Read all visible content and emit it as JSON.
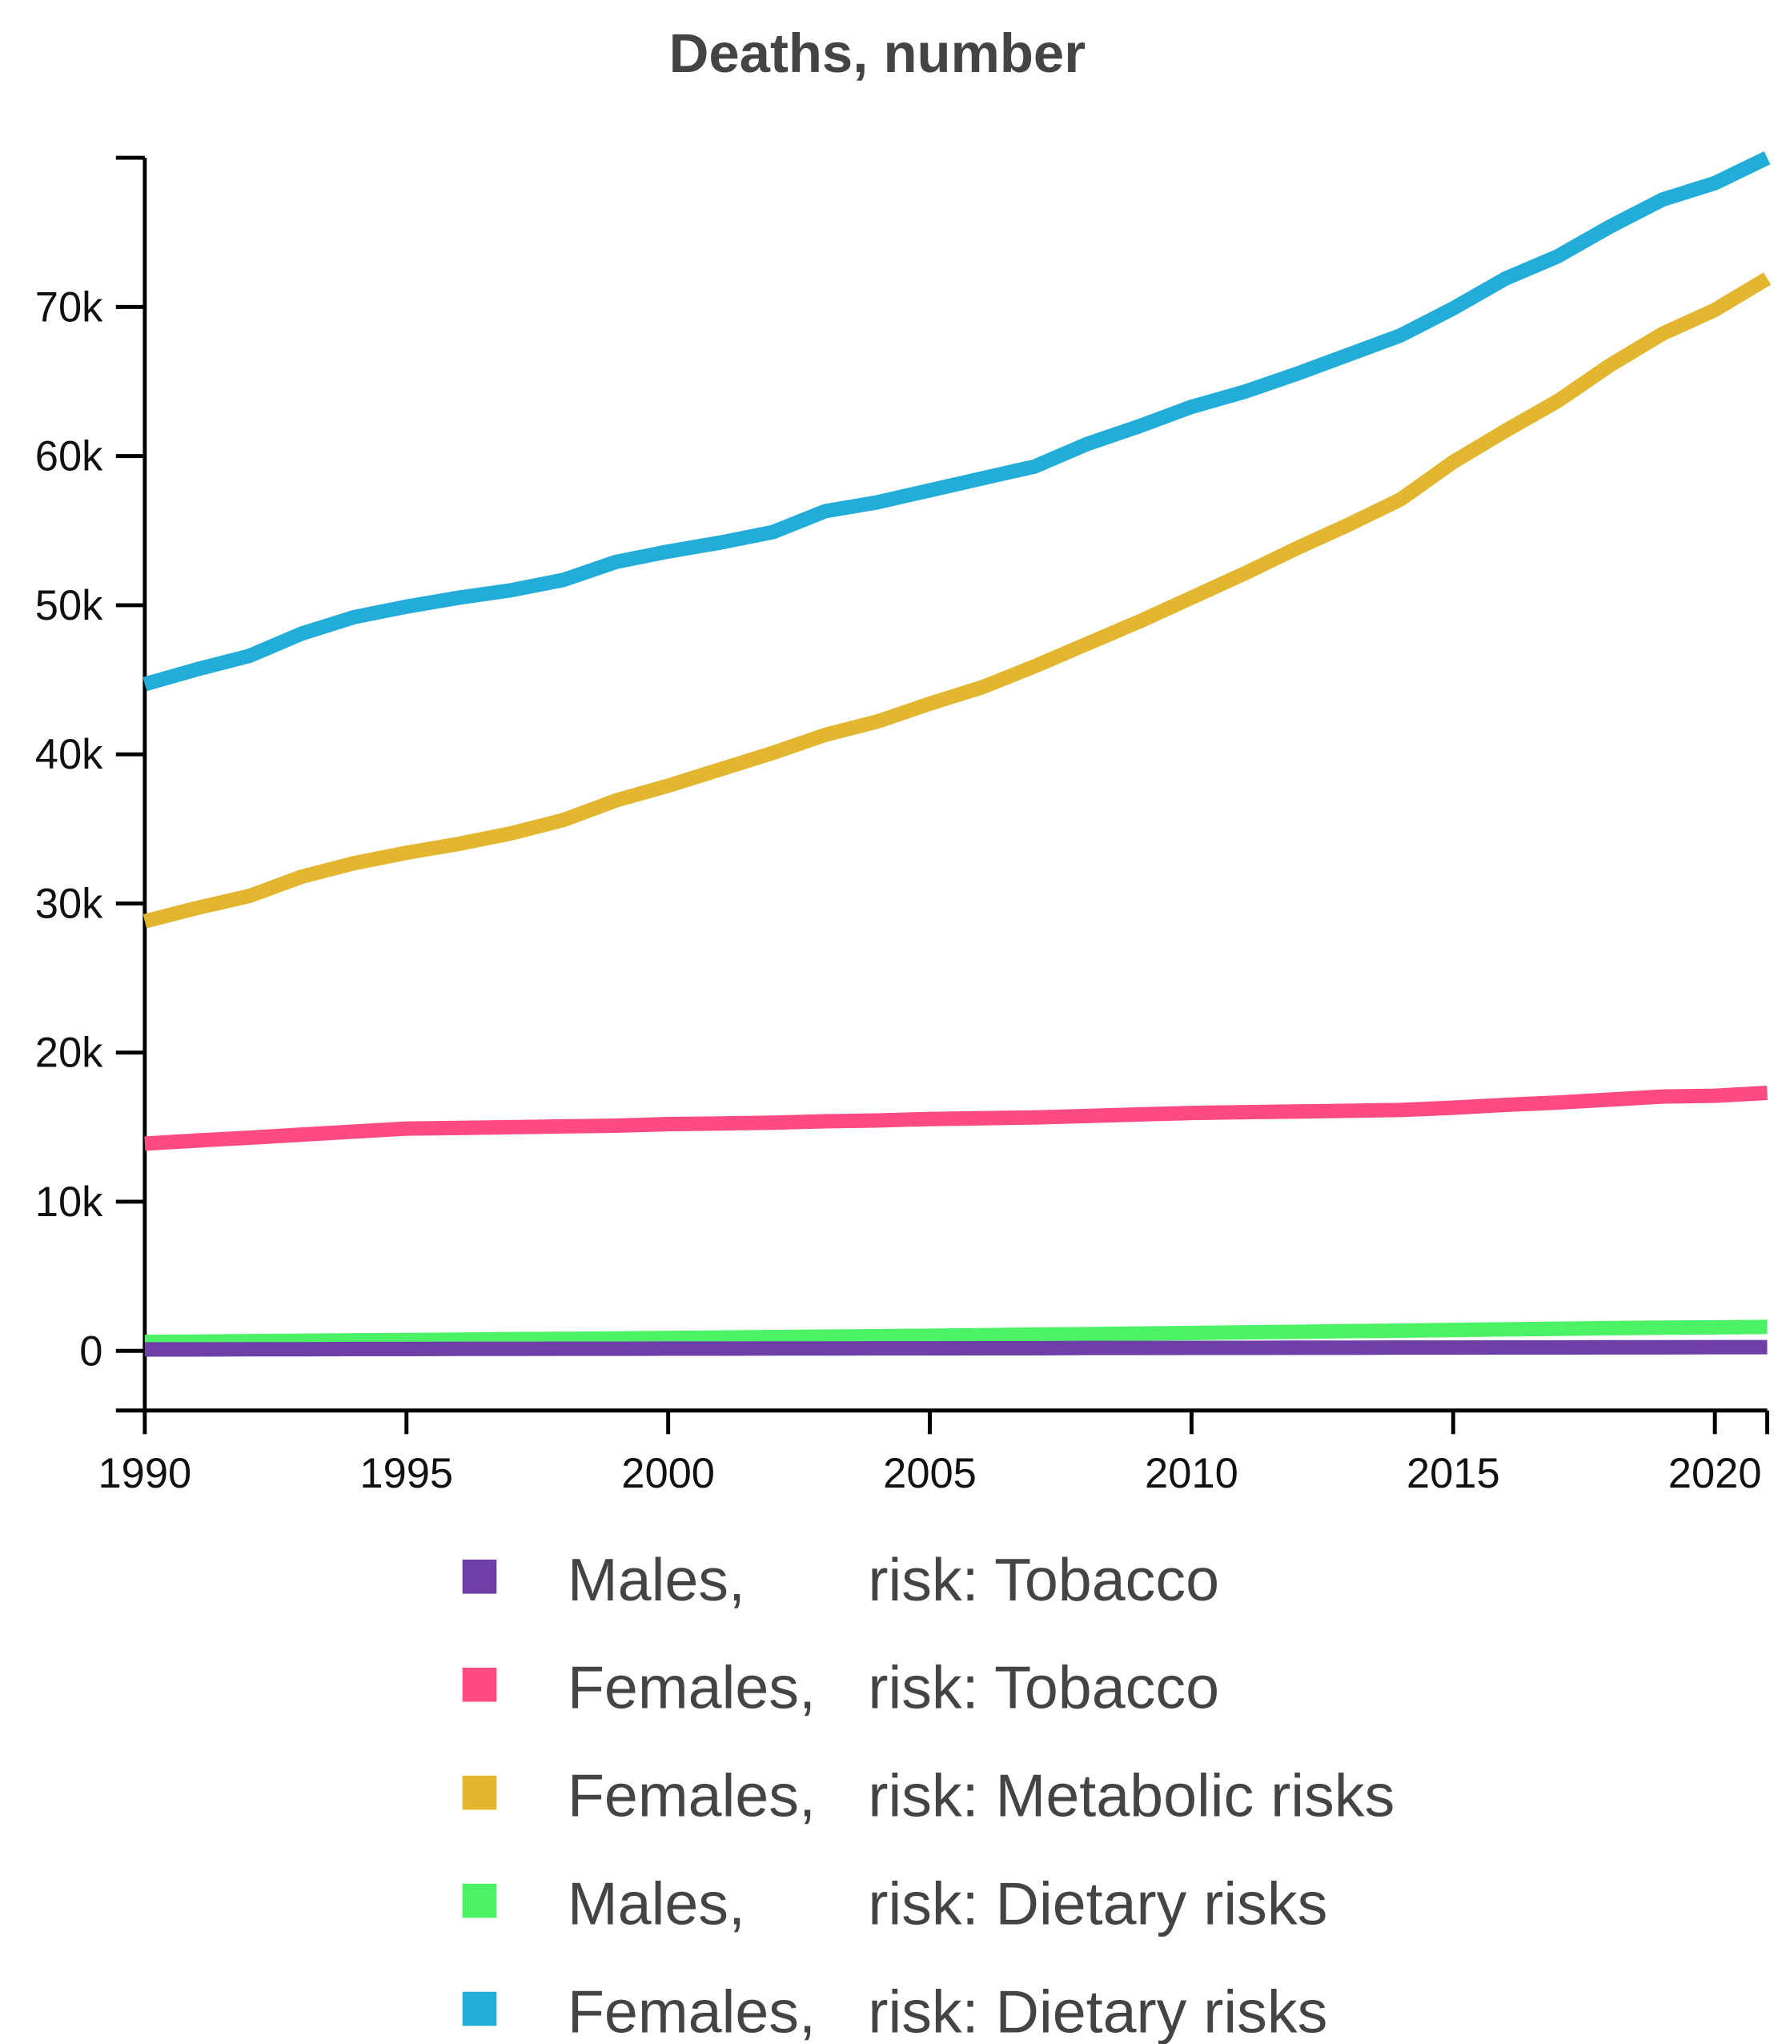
{
  "chart_data": {
    "type": "line",
    "title": "Deaths, number",
    "xlabel": "",
    "ylabel": "",
    "xlim": [
      1990,
      2021
    ],
    "ylim": [
      -4000,
      80000
    ],
    "x_ticks": [
      1990,
      1995,
      2000,
      2005,
      2010,
      2015,
      2020
    ],
    "y_ticks": [
      0,
      10000,
      20000,
      30000,
      40000,
      50000,
      60000,
      70000
    ],
    "y_tick_labels": [
      "0",
      "10k",
      "20k",
      "30k",
      "40k",
      "50k",
      "60k",
      "70k"
    ],
    "legend_position": "bottom",
    "x": [
      1990,
      1991,
      1992,
      1993,
      1994,
      1995,
      1996,
      1997,
      1998,
      1999,
      2000,
      2001,
      2002,
      2003,
      2004,
      2005,
      2006,
      2007,
      2008,
      2009,
      2010,
      2011,
      2012,
      2013,
      2014,
      2015,
      2016,
      2017,
      2018,
      2019,
      2020,
      2021
    ],
    "series": [
      {
        "name": "Males, risk: Tobacco",
        "group": "Males,",
        "risk": "risk: Tobacco",
        "color": "#6e3fa6",
        "values": [
          100,
          100,
          110,
          110,
          120,
          120,
          130,
          130,
          140,
          140,
          150,
          150,
          160,
          160,
          170,
          170,
          180,
          180,
          190,
          190,
          200,
          200,
          210,
          210,
          220,
          220,
          230,
          230,
          240,
          240,
          250,
          250
        ]
      },
      {
        "name": "Females, risk: Tobacco",
        "group": "Females,",
        "risk": "risk: Tobacco",
        "color": "#ff4b82",
        "values": [
          13900,
          14100,
          14300,
          14500,
          14700,
          14900,
          14950,
          15000,
          15050,
          15100,
          15200,
          15250,
          15300,
          15400,
          15450,
          15550,
          15600,
          15650,
          15750,
          15850,
          15950,
          16000,
          16050,
          16100,
          16150,
          16300,
          16500,
          16650,
          16850,
          17050,
          17100,
          17300
        ]
      },
      {
        "name": "Females, risk: Metabolic risks",
        "group": "Females,",
        "risk": "risk: Metabolic risks",
        "color": "#e3b630",
        "values": [
          28800,
          29700,
          30500,
          31800,
          32700,
          33400,
          34000,
          34700,
          35600,
          36900,
          37900,
          39000,
          40100,
          41300,
          42200,
          43400,
          44500,
          45900,
          47400,
          48900,
          50500,
          52100,
          53800,
          55400,
          57100,
          59600,
          61700,
          63700,
          66100,
          68200,
          69800,
          71900
        ]
      },
      {
        "name": "Males, risk: Dietary risks",
        "group": "Males,",
        "risk": "risk: Dietary risks",
        "color": "#4cf265",
        "values": [
          600,
          620,
          650,
          680,
          700,
          720,
          750,
          780,
          800,
          830,
          860,
          890,
          920,
          950,
          980,
          1010,
          1050,
          1090,
          1120,
          1160,
          1200,
          1240,
          1280,
          1320,
          1360,
          1400,
          1440,
          1480,
          1520,
          1560,
          1580,
          1600
        ]
      },
      {
        "name": "Females, risk: Dietary risks",
        "group": "Females,",
        "risk": "risk: Dietary risks",
        "color": "#22acd8",
        "values": [
          44700,
          45700,
          46600,
          48100,
          49200,
          49900,
          50500,
          51000,
          51700,
          52900,
          53600,
          54200,
          54900,
          56300,
          56900,
          57700,
          58500,
          59300,
          60800,
          62000,
          63300,
          64300,
          65500,
          66800,
          68100,
          69900,
          71900,
          73400,
          75400,
          77200,
          78300,
          80000
        ]
      }
    ]
  }
}
